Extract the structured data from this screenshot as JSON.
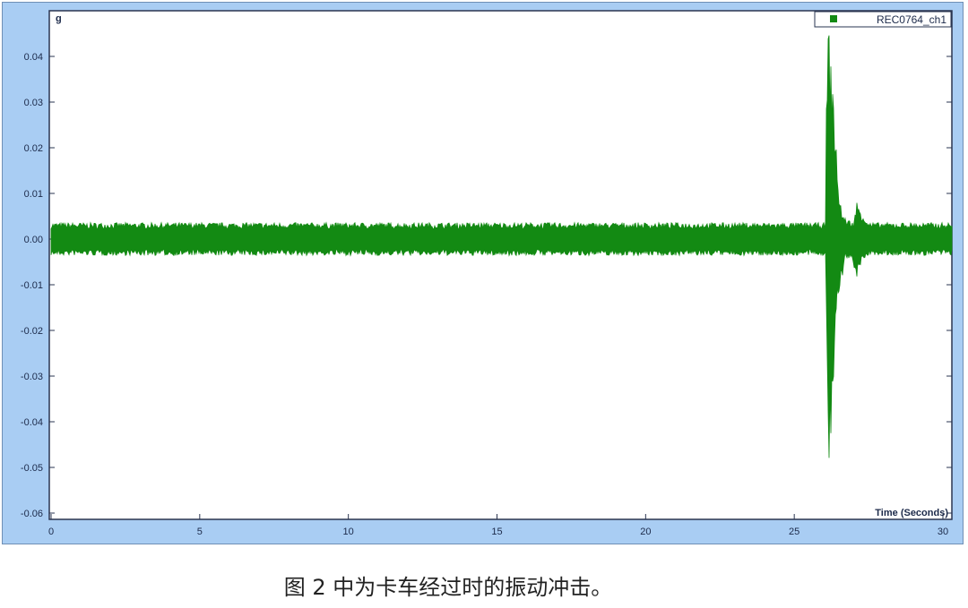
{
  "chart_data": {
    "type": "line",
    "title": "",
    "xlabel": "Time (Seconds)",
    "ylabel": "g",
    "xlim": [
      0,
      30
    ],
    "ylim": [
      -0.06,
      0.045
    ],
    "x_ticks": [
      "0",
      "5",
      "10",
      "15",
      "20",
      "25",
      "30"
    ],
    "y_ticks": [
      "0.04",
      "0.03",
      "0.02",
      "0.01",
      "0.00",
      "-0.01",
      "-0.02",
      "-0.03",
      "-0.04",
      "-0.05",
      "-0.06"
    ],
    "grid": false,
    "legend_position": "top-right",
    "series": [
      {
        "name": "REC0764_ch1",
        "color": "#138a13",
        "envelope": {
          "t": [
            0,
            26.05,
            26.1,
            26.15,
            26.2,
            26.3,
            26.45,
            26.6,
            26.7,
            27.0,
            27.1,
            27.3,
            27.5,
            30
          ],
          "max": [
            0.003,
            0.003,
            0.04,
            0.04,
            0.035,
            0.03,
            0.012,
            0.005,
            0.004,
            0.003,
            0.007,
            0.005,
            0.003,
            0.003
          ],
          "min": [
            -0.003,
            -0.003,
            -0.018,
            -0.045,
            -0.04,
            -0.03,
            -0.012,
            -0.008,
            -0.003,
            -0.005,
            -0.007,
            -0.004,
            -0.003,
            -0.003
          ]
        }
      }
    ]
  },
  "caption": "图 2 中为卡车经过时的振动冲击。"
}
